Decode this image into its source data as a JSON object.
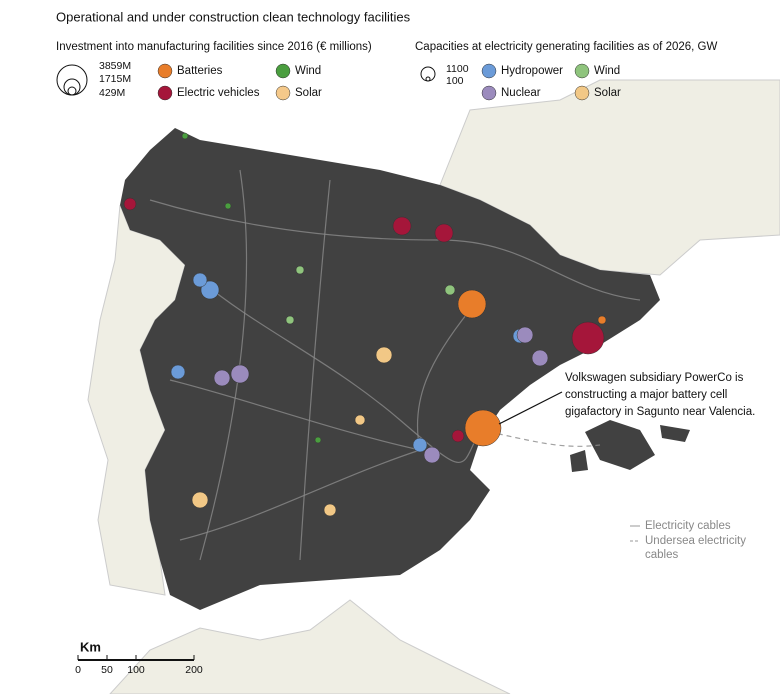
{
  "title": "Operational and under construction clean technology facilities",
  "manufacturing_legend": {
    "title": "Investment into manufacturing facilities since 2016 (€ millions)",
    "sizes": [
      "3859M",
      "1715M",
      "429M"
    ],
    "items": [
      {
        "label": "Batteries",
        "color": "#e87d2a"
      },
      {
        "label": "Wind",
        "color": "#4a9e3f"
      },
      {
        "label": "Electric vehicles",
        "color": "#a5163a"
      },
      {
        "label": "Solar",
        "color": "#f5c98a"
      }
    ]
  },
  "generation_legend": {
    "title": "Capacities at electricity generating facilities as of 2026, GW",
    "sizes": [
      "1100",
      "100"
    ],
    "items": [
      {
        "label": "Hydropower",
        "color": "#6b9bd8"
      },
      {
        "label": "Wind",
        "color": "#8fc47d"
      },
      {
        "label": "Nuclear",
        "color": "#9b8bbd"
      },
      {
        "label": "Solar",
        "color": "#f2c886"
      }
    ]
  },
  "annotation": [
    "Volkswagen subsidiary PowerCo is",
    "constructing a major battery cell",
    "gigafactory in Sagunto near Valencia."
  ],
  "lines_legend": {
    "cables": "Electricity cables",
    "undersea": [
      "Undersea electricity",
      "cables"
    ]
  },
  "scale": {
    "unit": "Km",
    "ticks": [
      "0",
      "50",
      "100",
      "200"
    ]
  }
}
